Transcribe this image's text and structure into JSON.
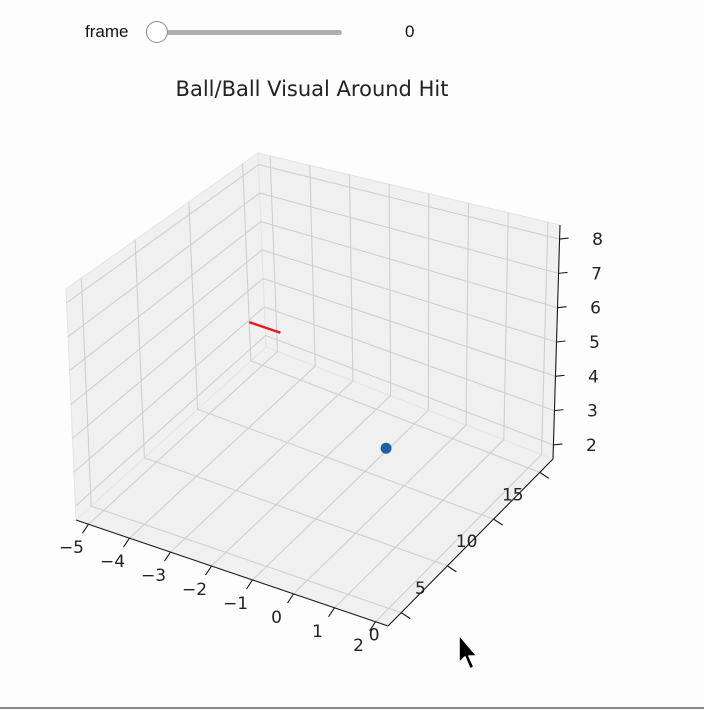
{
  "slider": {
    "label": "frame",
    "value": "0",
    "position": 0
  },
  "chart_data": {
    "type": "scatter3d",
    "title": "Ball/Ball Visual Around Hit",
    "x_ticks": [
      "−5",
      "−4",
      "−3",
      "−2",
      "−1",
      "0",
      "1",
      "2"
    ],
    "y_ticks": [
      "0",
      "5",
      "10",
      "15"
    ],
    "z_ticks": [
      "2",
      "3",
      "4",
      "5",
      "6",
      "7",
      "8"
    ],
    "series": [
      {
        "kind": "line",
        "color": "#e41a1c",
        "points": [
          [
            -5.0,
            15.0,
            4.0
          ],
          [
            -4.0,
            15.0,
            4.0
          ]
        ]
      },
      {
        "kind": "point",
        "color": "#1f5fa8",
        "points": [
          [
            2.0,
            5.0,
            5.0
          ]
        ]
      }
    ],
    "grid": true,
    "pane_color": "#f0f0f0",
    "grid_color": "#cfcfcf"
  }
}
